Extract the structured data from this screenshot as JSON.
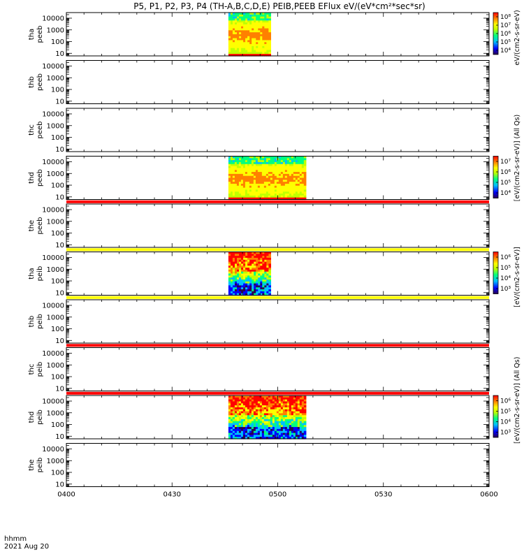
{
  "chart_data": {
    "type": "heatmap",
    "title": "P5, P1, P2, P3, P4 (TH-A,B,C,D,E) PEIB,PEEB EFlux eV/(eV*cm²*sec*sr)",
    "x_axis": {
      "title_line1": "hhmm",
      "title_line2": "2021 Aug 20",
      "tick_labels": [
        "0400",
        "0430",
        "0500",
        "0530",
        "0600"
      ],
      "range_minutes": [
        0,
        120
      ]
    },
    "y_axis": {
      "scale": "log",
      "range": [
        6,
        30000
      ],
      "tick_labels": [
        "10",
        "100",
        "1000",
        "10000"
      ],
      "tick_values": [
        10,
        100,
        1000,
        10000
      ]
    },
    "colorbar_units": {
      "electron_a": "eV/(cm2-s-sr-eV)",
      "electron_group": "[eV/(cm2-s-sr-eV)] (All Qs)",
      "ion_group": "[eV/(cm2-s-sr-eV)] (All Qs)",
      "ion_e": "[eV/(cm2-s-sr-eV)]"
    },
    "panels": [
      {
        "id": "tha-peeb",
        "label_line1": "tha",
        "label_line2": "peeb",
        "data_start_min": 46,
        "data_end_min": 58,
        "colorbar": true,
        "colorbar_ticks": [
          "10⁴",
          "10⁵",
          "10⁶",
          "10⁷",
          "10⁸"
        ],
        "flag_bar": ""
      },
      {
        "id": "thb-peeb",
        "label_line1": "thb",
        "label_line2": "peeb",
        "data_start_min": null,
        "data_end_min": null,
        "colorbar": false,
        "flag_bar": ""
      },
      {
        "id": "thc-peeb",
        "label_line1": "thc",
        "label_line2": "peeb",
        "data_start_min": null,
        "data_end_min": null,
        "colorbar": false,
        "flag_bar": ""
      },
      {
        "id": "thd-peeb",
        "label_line1": "thd",
        "label_line2": "peeb",
        "data_start_min": 46,
        "data_end_min": 68,
        "colorbar": true,
        "colorbar_ticks": [
          "10⁴",
          "10⁵",
          "10⁶",
          "10⁷"
        ],
        "flag_bar": ""
      },
      {
        "id": "the-peeb",
        "label_line1": "the",
        "label_line2": "peeb",
        "data_start_min": null,
        "data_end_min": null,
        "colorbar": false,
        "flag_bar": "#ff0000"
      },
      {
        "id": "tha-peib",
        "label_line1": "tha",
        "label_line2": "peib",
        "data_start_min": 46,
        "data_end_min": 58,
        "colorbar": true,
        "colorbar_ticks": [
          "10³",
          "10⁴",
          "10⁵",
          "10⁶"
        ],
        "flag_bar": "#ffff00"
      },
      {
        "id": "thb-peib",
        "label_line1": "thb",
        "label_line2": "peib",
        "data_start_min": null,
        "data_end_min": null,
        "colorbar": false,
        "flag_bar": "#ffff00"
      },
      {
        "id": "thc-peib",
        "label_line1": "thc",
        "label_line2": "peib",
        "data_start_min": null,
        "data_end_min": null,
        "colorbar": false,
        "flag_bar": "#ff0000"
      },
      {
        "id": "thd-peib",
        "label_line1": "thd",
        "label_line2": "peib",
        "data_start_min": 46,
        "data_end_min": 68,
        "colorbar": true,
        "colorbar_ticks": [
          "10³",
          "10⁴",
          "10⁵",
          "10⁶"
        ],
        "flag_bar": "#ff0000"
      },
      {
        "id": "the-peib",
        "label_line1": "the",
        "label_line2": "peib",
        "data_start_min": null,
        "data_end_min": null,
        "colorbar": false,
        "flag_bar": ""
      }
    ],
    "colormap": [
      "#2a0050",
      "#0000ff",
      "#00bfff",
      "#00ff80",
      "#c0ff00",
      "#ffff00",
      "#ff8000",
      "#ff0000"
    ],
    "legend_placement": "right",
    "grid": false
  }
}
